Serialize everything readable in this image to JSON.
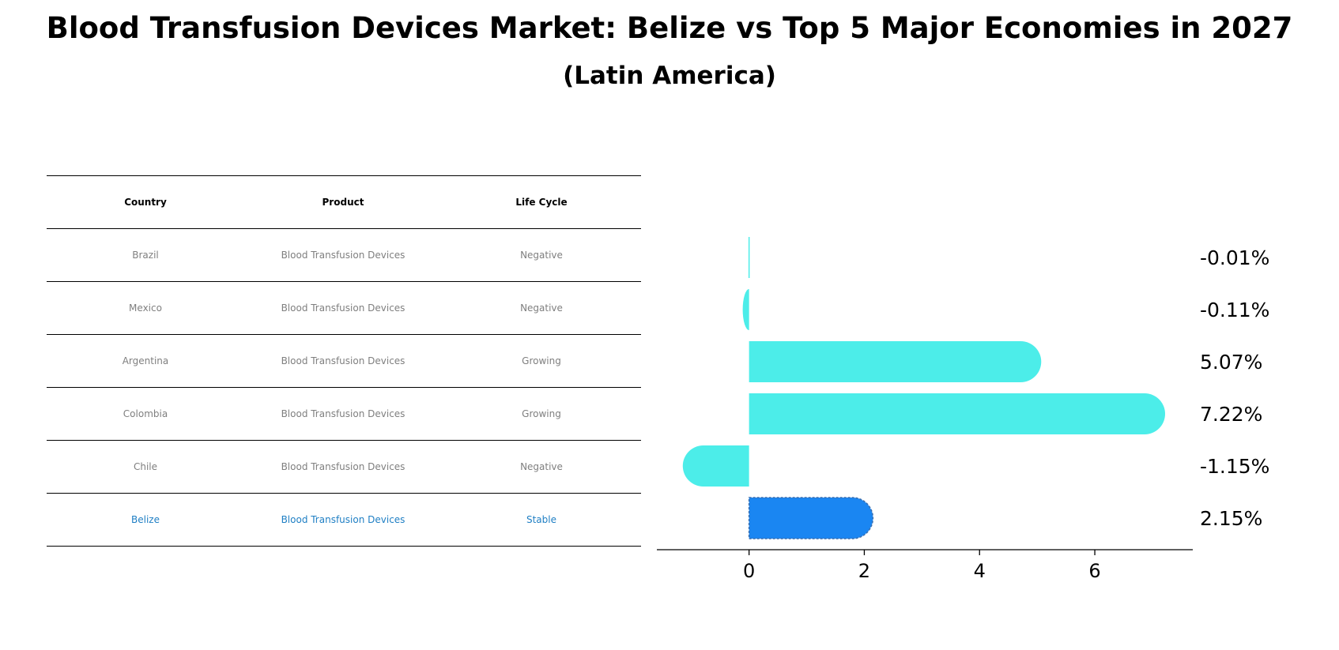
{
  "title": "Blood Transfusion Devices Market: Belize vs Top 5 Major Economies in 2027",
  "subtitle": "(Latin America)",
  "table": {
    "headers": [
      "Country",
      "Product",
      "Life Cycle"
    ],
    "rows": [
      [
        "Brazil",
        "Blood Transfusion Devices",
        "Negative"
      ],
      [
        "Mexico",
        "Blood Transfusion Devices",
        "Negative"
      ],
      [
        "Argentina",
        "Blood Transfusion Devices",
        "Growing"
      ],
      [
        "Colombia",
        "Blood Transfusion Devices",
        "Growing"
      ],
      [
        "Chile",
        "Blood Transfusion Devices",
        "Negative"
      ],
      [
        "Belize",
        "Blood Transfusion Devices",
        "Stable"
      ]
    ],
    "highlight_row": 5
  },
  "chart_data": {
    "type": "bar",
    "orientation": "horizontal",
    "categories": [
      "Brazil",
      "Mexico",
      "Argentina",
      "Colombia",
      "Chile",
      "Belize"
    ],
    "values": [
      -0.01,
      -0.11,
      5.07,
      7.22,
      -1.15,
      2.15
    ],
    "labels": [
      "-0.01%",
      "-0.11%",
      "5.07%",
      "7.22%",
      "-1.15%",
      "2.15%"
    ],
    "xlim": [
      -1.6,
      7.7
    ],
    "xticks": [
      0,
      2,
      4,
      6
    ],
    "xtick_labels": [
      "0",
      "2",
      "4",
      "6"
    ],
    "highlight": "Belize",
    "colors": {
      "default": "#4cede9",
      "highlight": "#1a86f2",
      "axis": "#000000"
    }
  }
}
